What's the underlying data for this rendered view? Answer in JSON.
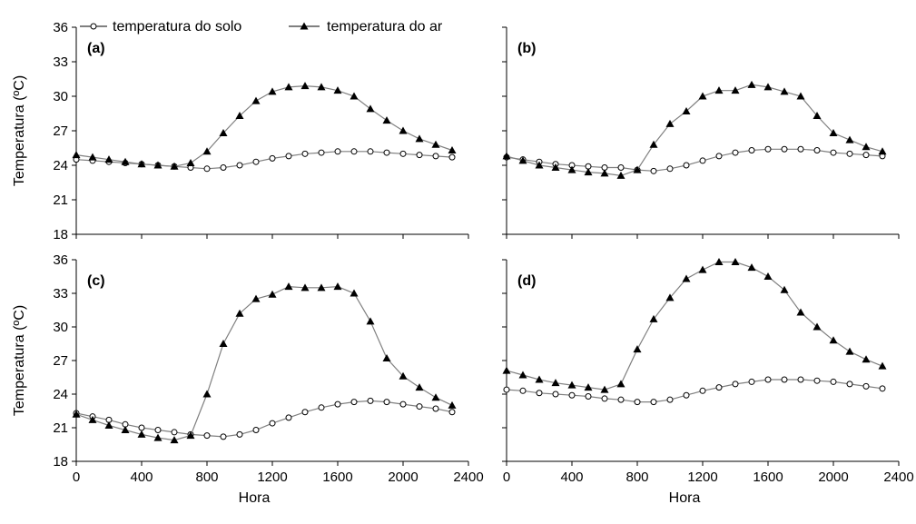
{
  "legend": {
    "soil_label": "temperatura do solo",
    "air_label": "temperatura do ar"
  },
  "colors": {
    "soil_line": "#808080",
    "air_line": "#808080",
    "marker": "#000000",
    "axis": "#000000"
  },
  "chart_data": [
    {
      "type": "line",
      "panel_label": "(a)",
      "ylabel": "Temperatura (ºC)",
      "xlabel": "",
      "xlim": [
        0,
        2400
      ],
      "ylim": [
        18,
        36
      ],
      "xticks": [
        0,
        400,
        800,
        1200,
        1600,
        2000,
        2400
      ],
      "yticks": [
        18,
        21,
        24,
        27,
        30,
        33,
        36
      ],
      "show_xticklabels": false,
      "show_yticklabels": true,
      "x": [
        0,
        100,
        200,
        300,
        400,
        500,
        600,
        700,
        800,
        900,
        1000,
        1100,
        1200,
        1300,
        1400,
        1500,
        1600,
        1700,
        1800,
        1900,
        2000,
        2100,
        2200,
        2300
      ],
      "series": [
        {
          "name": "temperatura do solo",
          "marker": "circle-open",
          "values": [
            24.5,
            24.4,
            24.3,
            24.2,
            24.1,
            24.0,
            23.9,
            23.8,
            23.7,
            23.8,
            24.0,
            24.3,
            24.6,
            24.8,
            25.0,
            25.1,
            25.2,
            25.2,
            25.2,
            25.1,
            25.0,
            24.9,
            24.8,
            24.7
          ]
        },
        {
          "name": "temperatura do ar",
          "marker": "triangle-filled",
          "values": [
            24.9,
            24.7,
            24.5,
            24.3,
            24.1,
            24.0,
            23.9,
            24.2,
            25.2,
            26.8,
            28.3,
            29.6,
            30.4,
            30.8,
            30.9,
            30.8,
            30.5,
            30.0,
            28.9,
            27.9,
            27.0,
            26.3,
            25.8,
            25.3
          ]
        }
      ]
    },
    {
      "type": "line",
      "panel_label": "(b)",
      "ylabel": "",
      "xlabel": "",
      "xlim": [
        0,
        2400
      ],
      "ylim": [
        18,
        36
      ],
      "xticks": [
        0,
        400,
        800,
        1200,
        1600,
        2000,
        2400
      ],
      "yticks": [
        18,
        21,
        24,
        27,
        30,
        33,
        36
      ],
      "show_xticklabels": false,
      "show_yticklabels": false,
      "x": [
        0,
        100,
        200,
        300,
        400,
        500,
        600,
        700,
        800,
        900,
        1000,
        1100,
        1200,
        1300,
        1400,
        1500,
        1600,
        1700,
        1800,
        1900,
        2000,
        2100,
        2200,
        2300
      ],
      "series": [
        {
          "name": "temperatura do solo",
          "marker": "circle-open",
          "values": [
            24.7,
            24.5,
            24.3,
            24.1,
            24.0,
            23.9,
            23.8,
            23.8,
            23.6,
            23.5,
            23.7,
            24.0,
            24.4,
            24.8,
            25.1,
            25.3,
            25.4,
            25.4,
            25.4,
            25.3,
            25.1,
            25.0,
            24.9,
            24.8
          ]
        },
        {
          "name": "temperatura do ar",
          "marker": "triangle-filled",
          "values": [
            24.8,
            24.4,
            24.0,
            23.8,
            23.6,
            23.4,
            23.3,
            23.1,
            23.6,
            25.8,
            27.6,
            28.7,
            30.0,
            30.5,
            30.5,
            31.0,
            30.8,
            30.4,
            30.0,
            28.3,
            26.8,
            26.2,
            25.6,
            25.2
          ]
        }
      ]
    },
    {
      "type": "line",
      "panel_label": "(c)",
      "ylabel": "Temperatura (ºC)",
      "xlabel": "Hora",
      "xlim": [
        0,
        2400
      ],
      "ylim": [
        18,
        36
      ],
      "xticks": [
        0,
        400,
        800,
        1200,
        1600,
        2000,
        2400
      ],
      "yticks": [
        18,
        21,
        24,
        27,
        30,
        33,
        36
      ],
      "show_xticklabels": true,
      "show_yticklabels": true,
      "x": [
        0,
        100,
        200,
        300,
        400,
        500,
        600,
        700,
        800,
        900,
        1000,
        1100,
        1200,
        1300,
        1400,
        1500,
        1600,
        1700,
        1800,
        1900,
        2000,
        2100,
        2200,
        2300
      ],
      "series": [
        {
          "name": "temperatura do solo",
          "marker": "circle-open",
          "values": [
            22.3,
            22.0,
            21.7,
            21.3,
            21.0,
            20.8,
            20.6,
            20.4,
            20.3,
            20.2,
            20.4,
            20.8,
            21.4,
            21.9,
            22.4,
            22.8,
            23.1,
            23.3,
            23.4,
            23.3,
            23.1,
            22.9,
            22.7,
            22.4
          ]
        },
        {
          "name": "temperatura do ar",
          "marker": "triangle-filled",
          "values": [
            22.2,
            21.7,
            21.2,
            20.8,
            20.4,
            20.1,
            19.9,
            20.3,
            24.0,
            28.5,
            31.2,
            32.5,
            32.9,
            33.6,
            33.5,
            33.5,
            33.6,
            33.0,
            30.5,
            27.2,
            25.6,
            24.6,
            23.7,
            23.0
          ]
        }
      ]
    },
    {
      "type": "line",
      "panel_label": "(d)",
      "ylabel": "",
      "xlabel": "Hora",
      "xlim": [
        0,
        2400
      ],
      "ylim": [
        18,
        36
      ],
      "xticks": [
        0,
        400,
        800,
        1200,
        1600,
        2000,
        2400
      ],
      "yticks": [
        18,
        21,
        24,
        27,
        30,
        33,
        36
      ],
      "show_xticklabels": true,
      "show_yticklabels": false,
      "x": [
        0,
        100,
        200,
        300,
        400,
        500,
        600,
        700,
        800,
        900,
        1000,
        1100,
        1200,
        1300,
        1400,
        1500,
        1600,
        1700,
        1800,
        1900,
        2000,
        2100,
        2200,
        2300
      ],
      "series": [
        {
          "name": "temperatura do solo",
          "marker": "circle-open",
          "values": [
            24.4,
            24.3,
            24.1,
            24.0,
            23.9,
            23.8,
            23.6,
            23.5,
            23.3,
            23.3,
            23.5,
            23.9,
            24.3,
            24.6,
            24.9,
            25.1,
            25.3,
            25.3,
            25.3,
            25.2,
            25.1,
            24.9,
            24.7,
            24.5
          ]
        },
        {
          "name": "temperatura do ar",
          "marker": "triangle-filled",
          "values": [
            26.1,
            25.7,
            25.3,
            25.0,
            24.8,
            24.6,
            24.4,
            24.9,
            28.0,
            30.7,
            32.6,
            34.3,
            35.1,
            35.8,
            35.8,
            35.3,
            34.5,
            33.3,
            31.3,
            30.0,
            28.8,
            27.8,
            27.1,
            26.5
          ]
        }
      ]
    }
  ]
}
